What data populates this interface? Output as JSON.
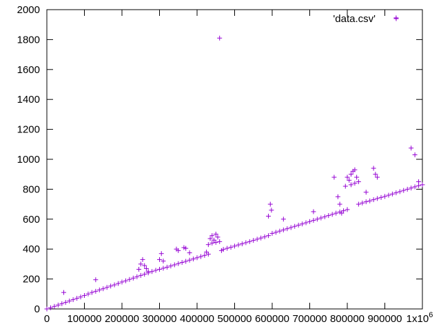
{
  "chart_data": {
    "type": "scatter",
    "title": "",
    "xlabel": "",
    "ylabel": "",
    "xlim": [
      0,
      1000000
    ],
    "ylim": [
      0,
      2000
    ],
    "grid": false,
    "legend_position": "top-right",
    "x_ticks": [
      0,
      100000,
      200000,
      300000,
      400000,
      500000,
      600000,
      700000,
      800000,
      900000,
      1000000
    ],
    "x_tick_labels": [
      "0",
      "100000",
      "200000",
      "300000",
      "400000",
      "500000",
      "600000",
      "700000",
      "800000",
      "900000",
      "1x10"
    ],
    "x_tick_superscripts": [
      "",
      "",
      "",
      "",
      "",
      "",
      "",
      "",
      "",
      "",
      "6"
    ],
    "y_ticks": [
      0,
      200,
      400,
      600,
      800,
      1000,
      1200,
      1400,
      1600,
      1800,
      2000
    ],
    "y_tick_labels": [
      "0",
      "200",
      "400",
      "600",
      "800",
      "1000",
      "1200",
      "1400",
      "1600",
      "1800",
      "2000"
    ],
    "series": [
      {
        "name": "'data.csv'",
        "color": "#9400d3",
        "marker": "plus",
        "x": [
          0,
          10000,
          20000,
          30000,
          40000,
          50000,
          60000,
          70000,
          80000,
          90000,
          100000,
          110000,
          120000,
          130000,
          140000,
          150000,
          160000,
          170000,
          180000,
          190000,
          200000,
          210000,
          220000,
          230000,
          240000,
          250000,
          260000,
          270000,
          280000,
          290000,
          300000,
          310000,
          320000,
          330000,
          340000,
          350000,
          360000,
          370000,
          380000,
          390000,
          400000,
          410000,
          420000,
          430000,
          440000,
          450000,
          460000,
          465000,
          470000,
          480000,
          490000,
          500000,
          510000,
          520000,
          530000,
          540000,
          550000,
          560000,
          570000,
          580000,
          590000,
          600000,
          610000,
          620000,
          630000,
          640000,
          650000,
          660000,
          670000,
          680000,
          690000,
          700000,
          710000,
          720000,
          730000,
          740000,
          750000,
          760000,
          770000,
          780000,
          790000,
          800000,
          810000,
          820000,
          830000,
          840000,
          850000,
          860000,
          870000,
          880000,
          890000,
          900000,
          910000,
          920000,
          930000,
          940000,
          950000,
          960000,
          970000,
          980000,
          990000,
          1000000,
          45000,
          130000,
          245000,
          250000,
          255000,
          260000,
          265000,
          270000,
          300000,
          305000,
          310000,
          345000,
          350000,
          365000,
          370000,
          380000,
          425000,
          430000,
          435000,
          440000,
          445000,
          450000,
          455000,
          460000,
          590000,
          595000,
          598000,
          630000,
          710000,
          765000,
          775000,
          780000,
          785000,
          795000,
          800000,
          805000,
          810000,
          815000,
          820000,
          825000,
          830000,
          850000,
          870000,
          875000,
          880000,
          930000,
          970000,
          980000,
          990000
        ],
        "y": [
          0,
          8,
          17,
          26,
          35,
          44,
          53,
          62,
          71,
          80,
          90,
          100,
          110,
          118,
          127,
          135,
          144,
          153,
          161,
          170,
          180,
          188,
          197,
          206,
          215,
          224,
          232,
          241,
          250,
          258,
          265,
          272,
          279,
          287,
          295,
          303,
          311,
          318,
          326,
          334,
          342,
          350,
          358,
          366,
          440,
          445,
          450,
          390,
          398,
          405,
          412,
          420,
          428,
          435,
          443,
          450,
          458,
          466,
          474,
          482,
          490,
          505,
          512,
          520,
          528,
          536,
          544,
          552,
          560,
          568,
          576,
          584,
          592,
          600,
          608,
          616,
          624,
          632,
          640,
          648,
          656,
          664,
          830,
          840,
          700,
          708,
          716,
          722,
          730,
          738,
          745,
          752,
          760,
          768,
          776,
          784,
          792,
          800,
          808,
          816,
          824,
          830,
          110,
          195,
          265,
          300,
          330,
          290,
          270,
          250,
          330,
          370,
          320,
          400,
          390,
          410,
          405,
          375,
          380,
          430,
          470,
          490,
          460,
          500,
          480,
          1810,
          620,
          700,
          660,
          600,
          650,
          880,
          750,
          700,
          640,
          820,
          880,
          860,
          900,
          920,
          930,
          880,
          850,
          780,
          940,
          900,
          880,
          1945,
          1075,
          1030,
          850
        ]
      }
    ]
  }
}
